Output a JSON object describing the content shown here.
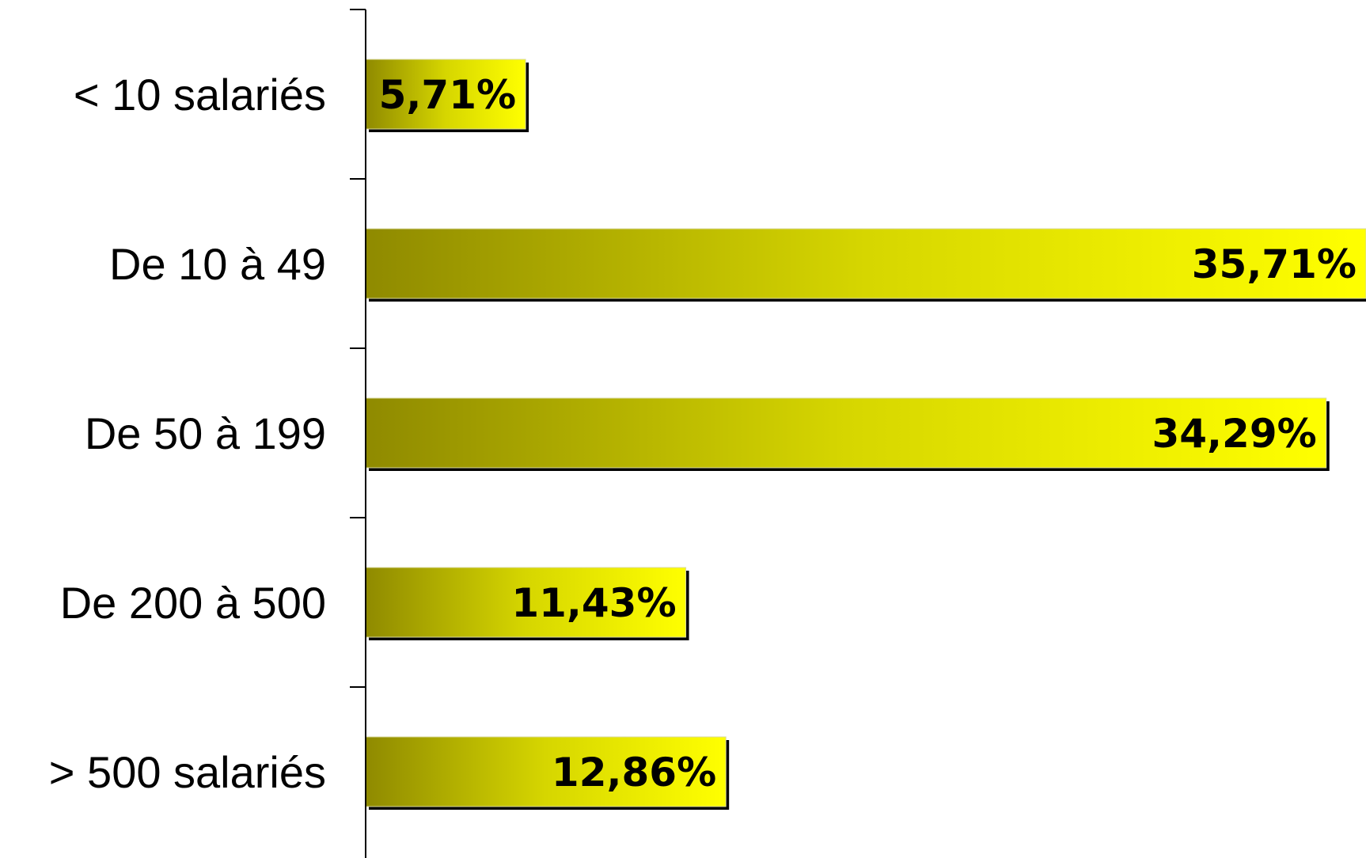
{
  "chart_data": {
    "type": "bar",
    "orientation": "horizontal",
    "categories": [
      "< 10 salariés",
      "De 10 à 49",
      "De 50 à 199",
      "De 200 à 500",
      "> 500 salariés"
    ],
    "values": [
      5.71,
      35.71,
      34.29,
      11.43,
      12.86
    ],
    "value_labels": [
      "5,71%",
      "35,71%",
      "34,29%",
      "11,43%",
      "12,86%"
    ],
    "unit": "%",
    "title": "",
    "xlabel": "",
    "ylabel": "",
    "xlim": [
      0,
      35.71
    ],
    "grid": false,
    "legend": "none",
    "colors": {
      "bar_gradient_start": "#8f8a00",
      "bar_gradient_mid": "#d6d600",
      "bar_gradient_end": "#ffff00",
      "bar_shadow": "#000000",
      "axis": "#000000",
      "text": "#000000"
    }
  }
}
